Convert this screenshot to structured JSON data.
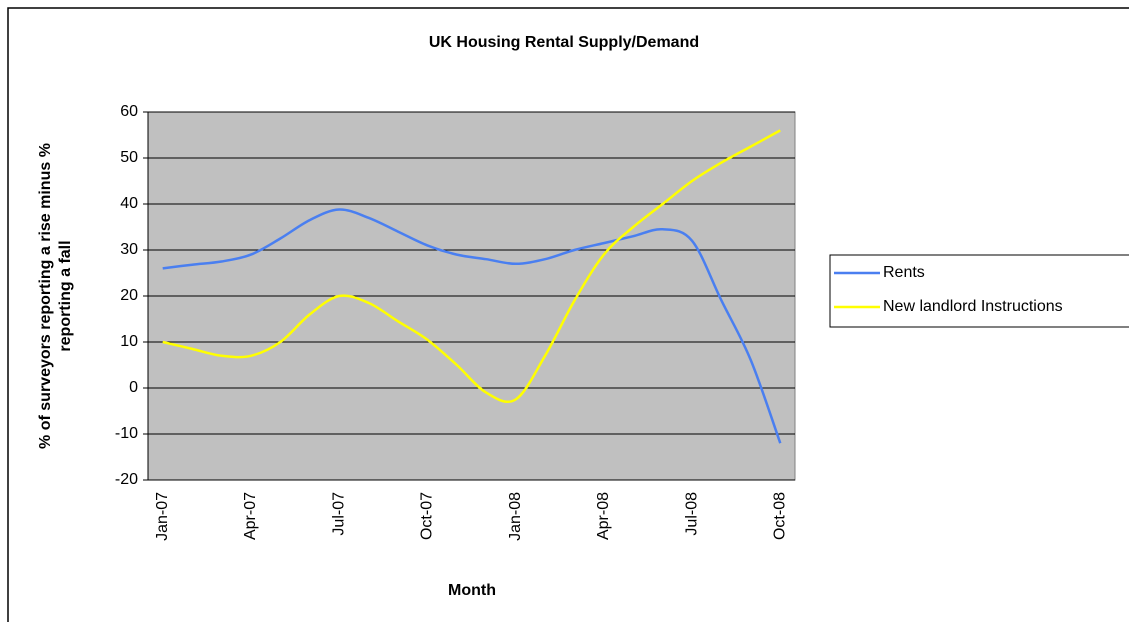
{
  "chart_data": {
    "type": "line",
    "title": "UK Housing Rental Supply/Demand",
    "xlabel": "Month",
    "ylabel": [
      "% of surveyors reporting a rise minus %",
      "reporting a fall"
    ],
    "categories": [
      "Jan-07",
      null,
      null,
      "Apr-07",
      null,
      null,
      "Jul-07",
      null,
      null,
      "Oct-07",
      null,
      null,
      "Jan-08",
      null,
      null,
      "Apr-08",
      null,
      null,
      "Jul-08",
      null,
      null,
      "Oct-08"
    ],
    "series": [
      {
        "name": "Rents",
        "color": "#4a7ff0",
        "values": [
          26,
          26.8,
          27.5,
          29,
          32.5,
          36.5,
          38.8,
          37,
          34,
          31,
          29,
          28,
          27,
          28,
          30,
          31.5,
          33,
          34.5,
          32,
          19,
          6,
          -12
        ]
      },
      {
        "name": "New landlord Instructions",
        "color": "#ffff00",
        "values": [
          10,
          8.5,
          7,
          7,
          10,
          16,
          20,
          18.5,
          14.5,
          10.5,
          5,
          -1,
          -2.5,
          7,
          19,
          29,
          35,
          40,
          45,
          49,
          52.5,
          56
        ]
      }
    ],
    "ylim": [
      -20,
      60
    ],
    "yticks": [
      -20,
      -10,
      0,
      10,
      20,
      30,
      40,
      50,
      60
    ],
    "grid": true,
    "legend": "right"
  }
}
